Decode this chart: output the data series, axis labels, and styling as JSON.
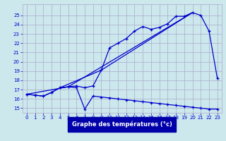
{
  "background_color": "#cce8ec",
  "grid_color": "#aaaacc",
  "line_color": "#0000cc",
  "xlabel": "Graphe des températures (°c)",
  "xlabel_color": "#ffffff",
  "xlabel_bg": "#0000aa",
  "ylim": [
    14.5,
    26.2
  ],
  "xlim": [
    -0.5,
    23.5
  ],
  "yticks": [
    15,
    16,
    17,
    18,
    19,
    20,
    21,
    22,
    23,
    24,
    25
  ],
  "xticks": [
    0,
    1,
    2,
    3,
    4,
    5,
    6,
    7,
    8,
    9,
    10,
    11,
    12,
    13,
    14,
    15,
    16,
    17,
    18,
    19,
    20,
    21,
    22,
    23
  ],
  "series_main_x": [
    0,
    1,
    2,
    3,
    4,
    5,
    6,
    7,
    8,
    9,
    10,
    11,
    12,
    13,
    14,
    15,
    16,
    17,
    18,
    19,
    20,
    21,
    22,
    23
  ],
  "series_main_y": [
    16.5,
    16.4,
    16.3,
    16.7,
    17.2,
    17.3,
    17.4,
    17.2,
    17.4,
    19.1,
    21.5,
    22.0,
    22.5,
    23.3,
    23.8,
    23.5,
    23.7,
    24.1,
    24.9,
    24.9,
    25.3,
    25.0,
    23.3,
    18.2
  ],
  "series_dew_x": [
    0,
    1,
    2,
    3,
    4,
    5,
    6,
    7,
    8,
    9,
    10,
    11,
    12,
    13,
    14,
    15,
    16,
    17,
    18,
    19,
    20,
    21,
    22,
    23
  ],
  "series_dew_y": [
    16.5,
    16.4,
    16.3,
    16.7,
    17.2,
    17.3,
    17.2,
    14.9,
    16.3,
    16.2,
    16.1,
    16.0,
    15.9,
    15.8,
    15.7,
    15.6,
    15.5,
    15.4,
    15.3,
    15.2,
    15.1,
    15.0,
    14.9,
    14.9
  ],
  "series_trend1_x": [
    0,
    5,
    20
  ],
  "series_trend1_y": [
    16.5,
    17.3,
    25.3
  ],
  "series_trend2_x": [
    4,
    9,
    20
  ],
  "series_trend2_y": [
    17.2,
    19.1,
    25.3
  ]
}
